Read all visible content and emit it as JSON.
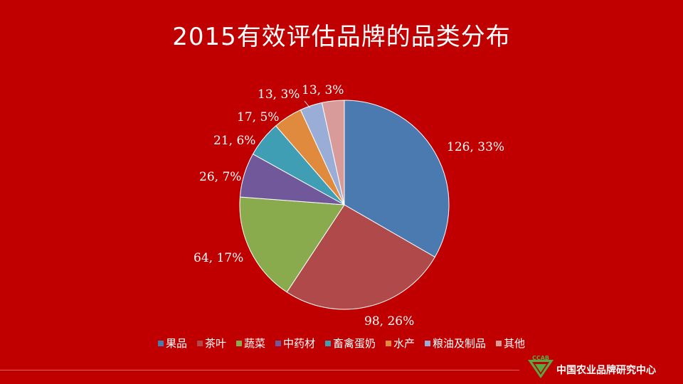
{
  "title": "2015有效评估品牌的品类分布",
  "colors": {
    "background": "#c00000",
    "series": [
      "#4a7ab0",
      "#b04a4a",
      "#8aaa4e",
      "#70589a",
      "#3f9db4",
      "#e08a3e",
      "#9aadd6",
      "#d99a9a"
    ]
  },
  "chart_data": {
    "type": "pie",
    "title": "2015有效评估品牌的品类分布",
    "categories": [
      "果品",
      "茶叶",
      "蔬菜",
      "中药材",
      "畜禽蛋奶",
      "水产",
      "粮油及制品",
      "其他"
    ],
    "values": [
      126,
      98,
      64,
      26,
      21,
      17,
      13,
      13
    ],
    "percent_labels": [
      "33%",
      "26%",
      "17%",
      "7%",
      "6%",
      "5%",
      "3%",
      "3%"
    ],
    "data_labels": [
      "126, 33%",
      "98, 26%",
      "64, 17%",
      "26, 7%",
      "21, 6%",
      "17, 5%",
      "13, 3%",
      "13, 3%"
    ],
    "legend_position": "bottom",
    "start": "12 o'clock",
    "direction": "clockwise"
  },
  "footer": {
    "logo_mark": "CCAB",
    "logo_text": "中国农业品牌研究中心"
  }
}
